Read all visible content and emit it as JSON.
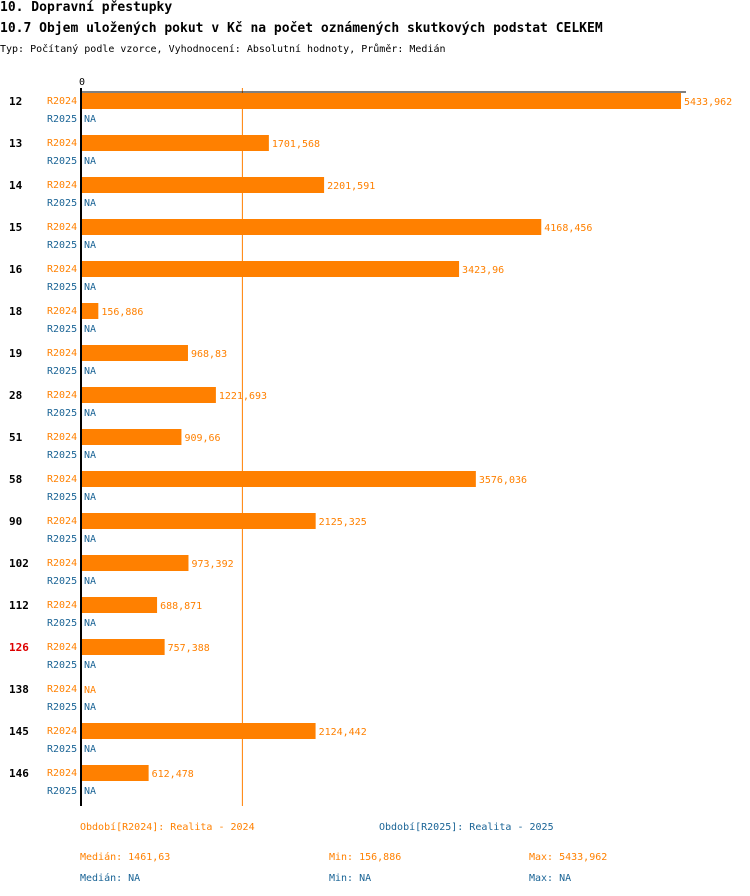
{
  "header": {
    "title": "10. Dopravní přestupky",
    "subtitle": "10.7 Objem uložených pokut v Kč na počet oznámených skutkových podstat CELKEM",
    "type_line": "Typ: Počítaný podle vzorce, Vyhodnocení: Absolutní hodnoty, Průměr: Medián"
  },
  "colors": {
    "series_2024": "#ff8000",
    "series_2025": "#1a6496",
    "highlight": "#dd0000",
    "axis": "#000000"
  },
  "chart_data": {
    "type": "bar",
    "orientation": "horizontal",
    "axis_zero_label": "0",
    "xlim": [
      0,
      5433.962
    ],
    "median_line": 1461.63,
    "highlight_category": "126",
    "categories": [
      "12",
      "13",
      "14",
      "15",
      "16",
      "18",
      "19",
      "28",
      "51",
      "58",
      "90",
      "102",
      "112",
      "126",
      "138",
      "145",
      "146"
    ],
    "series": [
      {
        "name": "R2024",
        "values": [
          5433.962,
          1701.568,
          2201.591,
          4168.456,
          3423.96,
          156.886,
          968.83,
          1221.693,
          909.66,
          3576.036,
          2125.325,
          973.392,
          688.871,
          757.388,
          null,
          2124.442,
          612.478
        ],
        "labels": [
          "5433,962",
          "1701,568",
          "2201,591",
          "4168,456",
          "3423,96",
          "156,886",
          "968,83",
          "1221,693",
          "909,66",
          "3576,036",
          "2125,325",
          "973,392",
          "688,871",
          "757,388",
          "NA",
          "2124,442",
          "612,478"
        ]
      },
      {
        "name": "R2025",
        "values": [
          null,
          null,
          null,
          null,
          null,
          null,
          null,
          null,
          null,
          null,
          null,
          null,
          null,
          null,
          null,
          null,
          null
        ],
        "labels": [
          "NA",
          "NA",
          "NA",
          "NA",
          "NA",
          "NA",
          "NA",
          "NA",
          "NA",
          "NA",
          "NA",
          "NA",
          "NA",
          "NA",
          "NA",
          "NA",
          "NA"
        ]
      }
    ]
  },
  "legend": {
    "period_2024": "Období[R2024]: Realita - 2024",
    "period_2025": "Období[R2025]: Realita - 2025",
    "median_2024": "Medián: 1461,63",
    "min_2024": "Min: 156,886",
    "max_2024": "Max: 5433,962",
    "median_2025": "Medián: NA",
    "min_2025": "Min: NA",
    "max_2025": "Max: NA"
  }
}
